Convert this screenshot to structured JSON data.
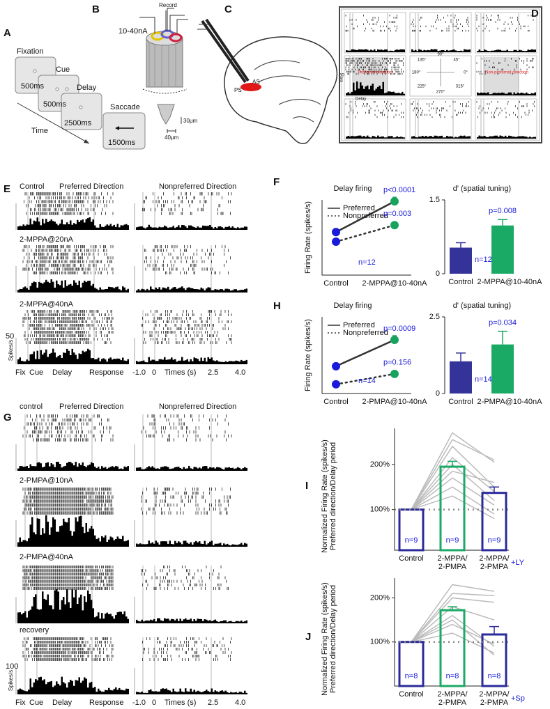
{
  "panels": [
    "A",
    "B",
    "C",
    "D",
    "E",
    "F",
    "G",
    "H",
    "I",
    "J"
  ],
  "task": {
    "screens": [
      {
        "label": "Fixation",
        "duration": "500ms"
      },
      {
        "label": "Cue",
        "duration": "500ms"
      },
      {
        "label": "Delay",
        "duration": "2500ms"
      },
      {
        "label": "Saccade",
        "duration": "1500ms"
      }
    ],
    "time": "Time"
  },
  "electrode": {
    "record": "Record",
    "current": "10-40nA",
    "tip_length": "30µm",
    "tip_width": "40µm"
  },
  "brain": {
    "sulci": [
      "PS",
      "AS"
    ]
  },
  "directions": {
    "angles": [
      "90°",
      "45°",
      "0°",
      "315°",
      "270°",
      "225°",
      "180°",
      "135°"
    ],
    "preferred": "Preferred direction",
    "nonpreferred": "Non-preferred direction",
    "scale": "50",
    "unit": "s/s",
    "epoch": "Delay"
  },
  "raster_e": {
    "conditions": [
      "Control",
      "2-MPPA@20nA",
      "2-MPPA@40nA"
    ],
    "columns": [
      "Preferred Direction",
      "Nonpreferred Direction"
    ],
    "scale": "50",
    "unit": "Spikes/s",
    "epochs": [
      "Fix",
      "Cue",
      "Delay",
      "Response"
    ],
    "times": [
      "-1.0",
      "0",
      "2.5",
      "4.0"
    ],
    "time_label": "Times (s)"
  },
  "raster_g": {
    "conditions": [
      "control",
      "2-PMPA@10nA",
      "2-PMPA@40nA",
      "recovery"
    ],
    "columns": [
      "Preferred Direction",
      "Nonpreferred Direction"
    ],
    "scale": "100",
    "unit": "Spikes/s",
    "epochs": [
      "Fix",
      "Cue",
      "Delay",
      "Response"
    ],
    "times": [
      "-1.0",
      "0",
      "2.5",
      "4.0"
    ],
    "time_label": "Times (s)"
  },
  "chart_data": [
    {
      "type": "line",
      "title": "Delay firing",
      "ylabel": "Firing Rate (spikes/s)",
      "categories": [
        "Control",
        "2-MPPA@10-40nA"
      ],
      "category_colors": [
        "#1a1adb",
        "#17a35e"
      ],
      "ylim": [
        0,
        25
      ],
      "series": [
        {
          "name": "Preferred",
          "color": "#333333",
          "style": "solid",
          "values": [
            14.3,
            24.5
          ],
          "errors": [
            1.2,
            1.4
          ],
          "label": "p<0.0001"
        },
        {
          "name": "Nonpreferred",
          "color": "#333333",
          "style": "dotted",
          "values": [
            11.1,
            16.6
          ],
          "errors": [
            1.1,
            0.8
          ],
          "label": "p=0.003"
        }
      ],
      "n_label": "n=12"
    },
    {
      "type": "bar",
      "title": "d' (spatial tuning)",
      "categories": [
        "Control",
        "2-MPPA@10-40nA"
      ],
      "category_colors": [
        "#1a1adb",
        "#17a35e"
      ],
      "colors": [
        "#33339a",
        "#1aaa65"
      ],
      "bar_fill": true,
      "values": [
        0.53,
        0.98
      ],
      "errors": [
        0.1,
        0.12
      ],
      "ylim": [
        0,
        1.5
      ],
      "yticks": [
        0,
        1.5
      ],
      "p_value": "p=0.008",
      "n_label": "n=12"
    },
    {
      "type": "line",
      "title": "Delay firing",
      "ylabel": "Firing Rate (spikes/s)",
      "categories": [
        "Control",
        "2-PMPA@10-40nA"
      ],
      "category_colors": [
        "#1a1adb",
        "#17a35e"
      ],
      "ylim": [
        0,
        25
      ],
      "series": [
        {
          "name": "Preferred",
          "color": "#333333",
          "style": "solid",
          "values": [
            8.9,
            17.5
          ],
          "errors": [
            1.1,
            1.4
          ],
          "label": "p=0.0009"
        },
        {
          "name": "Nonpreferred",
          "color": "#333333",
          "style": "dotted",
          "values": [
            3.0,
            6.4
          ],
          "errors": [
            0.9,
            0.9
          ],
          "label": "p=0.156"
        }
      ],
      "n_label": "n=14"
    },
    {
      "type": "bar",
      "title": "d' (spatial tuning)",
      "categories": [
        "Control",
        "2-PMPA@10-40nA"
      ],
      "category_colors": [
        "#1a1adb",
        "#17a35e"
      ],
      "colors": [
        "#33339a",
        "#1aaa65"
      ],
      "bar_fill": true,
      "values": [
        1.05,
        1.6
      ],
      "errors": [
        0.27,
        0.43
      ],
      "ylim": [
        0,
        2.5
      ],
      "yticks": [
        0,
        2.5
      ],
      "p_value": "p=0.034",
      "n_label": "n=14"
    },
    {
      "type": "bar",
      "ylabel": [
        "Normalized Firing Rate (spikes/s)",
        "Preferred direction/Delay period"
      ],
      "categories": [
        [
          "Control"
        ],
        [
          "2-MPPA/",
          "2-PMPA"
        ],
        [
          "2-MPPA/",
          "2-PMPA"
        ]
      ],
      "category_colors": [
        "#1a1adb",
        "#17a35e",
        "#1a1adb"
      ],
      "colors": [
        "#2a2a9a",
        "#1aaa65",
        "#2a2a9a"
      ],
      "bar_fill": false,
      "values": [
        100,
        195,
        137
      ],
      "errors": [
        0,
        12,
        13
      ],
      "ylim": [
        10,
        280
      ],
      "yticks": [
        {
          "value": 100,
          "label": "100%"
        },
        {
          "value": 200,
          "label": "200%"
        }
      ],
      "reference": 100,
      "bar_labels": [
        "n=9",
        "n=9",
        "n=9"
      ],
      "drug_label": "+LY",
      "individual": [
        [
          100,
          270,
          205
        ],
        [
          100,
          255,
          210
        ],
        [
          100,
          240,
          150
        ],
        [
          100,
          215,
          140
        ],
        [
          100,
          200,
          120
        ],
        [
          100,
          185,
          160
        ],
        [
          100,
          170,
          110
        ],
        [
          100,
          150,
          90
        ],
        [
          100,
          130,
          80
        ]
      ]
    },
    {
      "type": "bar",
      "ylabel": [
        "Normalized Firing Rate (spikes/s)",
        "Preferred direction/Delay period"
      ],
      "categories": [
        [
          "Control"
        ],
        [
          "2-MPPA/",
          "2-PMPA"
        ],
        [
          "2-MPPA/",
          "2-PMPA"
        ]
      ],
      "category_colors": [
        "#1a1adb",
        "#17a35e",
        "#1a1adb"
      ],
      "colors": [
        "#2a2a9a",
        "#1aaa65",
        "#2a2a9a"
      ],
      "bar_fill": false,
      "values": [
        100,
        172,
        117
      ],
      "errors": [
        0,
        8,
        18
      ],
      "ylim": [
        0,
        245
      ],
      "yticks": [
        {
          "value": 100,
          "label": "100%"
        },
        {
          "value": 200,
          "label": "200%"
        }
      ],
      "reference": 100,
      "bar_labels": [
        "n=8",
        "n=8",
        "n=8"
      ],
      "drug_label": "+Sp",
      "individual": [
        [
          100,
          230,
          215
        ],
        [
          100,
          210,
          205
        ],
        [
          100,
          200,
          190
        ],
        [
          100,
          180,
          150
        ],
        [
          100,
          160,
          90
        ],
        [
          100,
          150,
          70
        ],
        [
          100,
          140,
          95
        ],
        [
          100,
          120,
          75
        ]
      ]
    }
  ]
}
